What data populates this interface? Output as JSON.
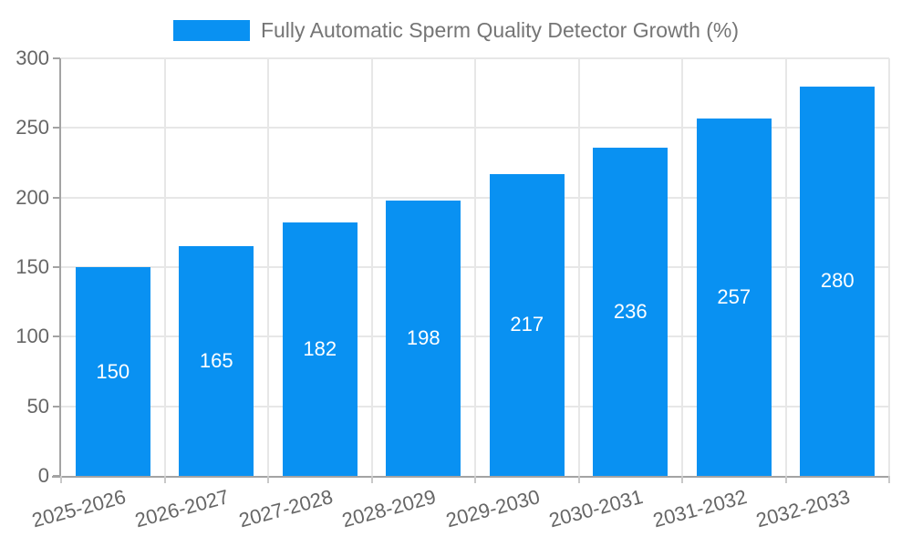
{
  "legend": {
    "label": "Fully Automatic Sperm Quality Detector Growth (%)",
    "swatch_color": "#0991f2"
  },
  "chart_data": {
    "type": "bar",
    "title": "Fully Automatic Sperm Quality Detector Growth (%)",
    "categories": [
      "2025-2026",
      "2026-2027",
      "2027-2028",
      "2028-2029",
      "2029-2030",
      "2030-2031",
      "2031-2032",
      "2032-2033"
    ],
    "values": [
      150,
      165,
      182,
      198,
      217,
      236,
      257,
      280
    ],
    "xlabel": "",
    "ylabel": "",
    "ylim": [
      0,
      300
    ],
    "yticks": [
      0,
      50,
      100,
      150,
      200,
      250,
      300
    ],
    "grid": true,
    "legend_position": "top",
    "x_label_rotation_deg": -15,
    "bar_color": "#0991f2",
    "value_label_color": "#ffffff",
    "grid_color": "#e7e7e7",
    "axis_color": "#a3a3a3",
    "tick_label_color": "#666666",
    "legend_text_color": "#757575"
  }
}
